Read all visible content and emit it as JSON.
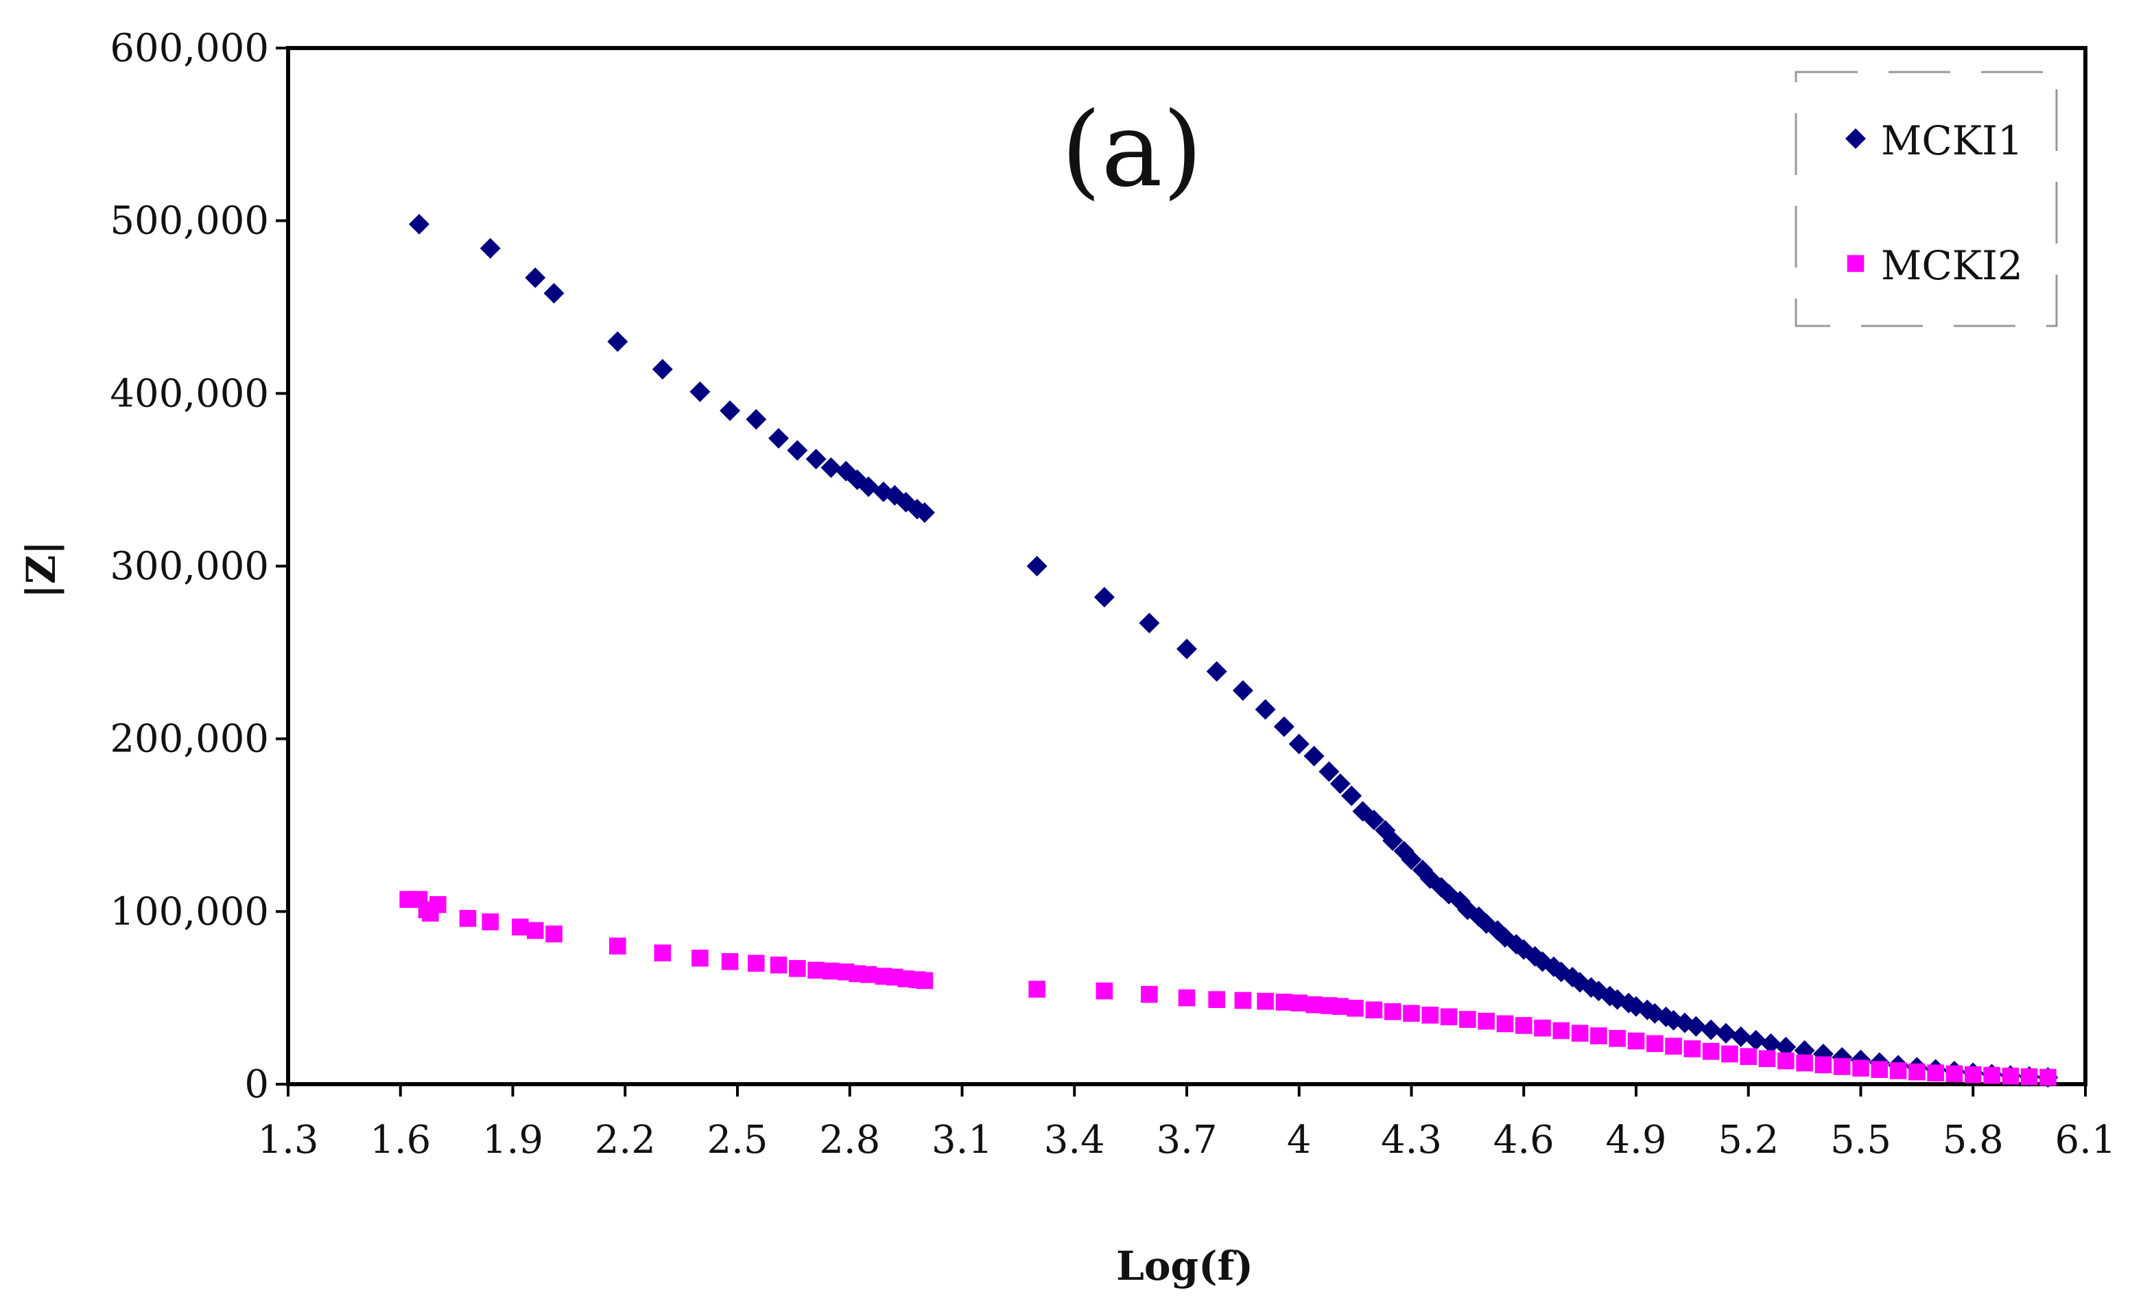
{
  "chart_data": {
    "type": "scatter",
    "title": "",
    "annotation": "(a)",
    "xlabel": "Log(f)",
    "ylabel": "|Z|",
    "xlim": [
      1.3,
      6.1
    ],
    "ylim": [
      0,
      600000
    ],
    "xticks": [
      "1.3",
      "1.6",
      "1.9",
      "2.2",
      "2.5",
      "2.8",
      "3.1",
      "3.4",
      "3.7",
      "4",
      "4.3",
      "4.6",
      "4.9",
      "5.2",
      "5.5",
      "5.8",
      "6.1"
    ],
    "yticks": [
      "0",
      "100,000",
      "200,000",
      "300,000",
      "400,000",
      "500,000",
      "600,000"
    ],
    "legend_position": "top-right",
    "grid": false,
    "series": [
      {
        "name": "MCKI1",
        "marker": "diamond",
        "color": "#000080",
        "points": [
          [
            1.65,
            498000
          ],
          [
            1.84,
            484000
          ],
          [
            1.96,
            467000
          ],
          [
            2.01,
            458000
          ],
          [
            2.18,
            430000
          ],
          [
            2.3,
            414000
          ],
          [
            2.4,
            401000
          ],
          [
            2.48,
            390000
          ],
          [
            2.55,
            385000
          ],
          [
            2.61,
            374000
          ],
          [
            2.66,
            367000
          ],
          [
            2.71,
            362000
          ],
          [
            2.75,
            357000
          ],
          [
            2.79,
            355000
          ],
          [
            2.82,
            350000
          ],
          [
            2.85,
            346000
          ],
          [
            2.89,
            343000
          ],
          [
            2.92,
            341000
          ],
          [
            2.95,
            337000
          ],
          [
            2.98,
            333000
          ],
          [
            3.0,
            331000
          ],
          [
            3.3,
            300000
          ],
          [
            3.48,
            282000
          ],
          [
            3.6,
            267000
          ],
          [
            3.7,
            252000
          ],
          [
            3.78,
            239000
          ],
          [
            3.85,
            228000
          ],
          [
            3.91,
            217000
          ],
          [
            3.96,
            207000
          ],
          [
            4.0,
            197000
          ],
          [
            4.04,
            190000
          ],
          [
            4.08,
            181000
          ],
          [
            4.11,
            174000
          ],
          [
            4.14,
            167000
          ],
          [
            4.17,
            158000
          ],
          [
            4.2,
            153000
          ],
          [
            4.23,
            147000
          ],
          [
            4.25,
            141000
          ],
          [
            4.28,
            135000
          ],
          [
            4.3,
            130000
          ],
          [
            4.33,
            124000
          ],
          [
            4.35,
            119000
          ],
          [
            4.38,
            114000
          ],
          [
            4.4,
            110000
          ],
          [
            4.43,
            106000
          ],
          [
            4.45,
            101000
          ],
          [
            4.48,
            97000
          ],
          [
            4.5,
            93000
          ],
          [
            4.53,
            89000
          ],
          [
            4.55,
            85000
          ],
          [
            4.58,
            81000
          ],
          [
            4.6,
            78000
          ],
          [
            4.63,
            74000
          ],
          [
            4.65,
            71000
          ],
          [
            4.68,
            68000
          ],
          [
            4.7,
            65000
          ],
          [
            4.73,
            62000
          ],
          [
            4.75,
            59000
          ],
          [
            4.78,
            56000
          ],
          [
            4.8,
            54000
          ],
          [
            4.83,
            51000
          ],
          [
            4.85,
            49000
          ],
          [
            4.88,
            47000
          ],
          [
            4.9,
            45000
          ],
          [
            4.93,
            43000
          ],
          [
            4.95,
            41000
          ],
          [
            4.98,
            39000
          ],
          [
            5.0,
            37000
          ],
          [
            5.03,
            35500
          ],
          [
            5.06,
            33500
          ],
          [
            5.1,
            31500
          ],
          [
            5.14,
            29500
          ],
          [
            5.18,
            27500
          ],
          [
            5.22,
            25500
          ],
          [
            5.26,
            23500
          ],
          [
            5.3,
            21500
          ],
          [
            5.35,
            19500
          ],
          [
            5.4,
            17500
          ],
          [
            5.45,
            15500
          ],
          [
            5.5,
            14000
          ],
          [
            5.55,
            12500
          ],
          [
            5.6,
            11000
          ],
          [
            5.65,
            9800
          ],
          [
            5.7,
            8600
          ],
          [
            5.75,
            7600
          ],
          [
            5.8,
            6600
          ],
          [
            5.85,
            5800
          ],
          [
            5.9,
            5000
          ],
          [
            5.95,
            4400
          ],
          [
            6.0,
            3900
          ]
        ]
      },
      {
        "name": "MCKI2",
        "marker": "square",
        "color": "#FF00FF",
        "points": [
          [
            1.62,
            107000
          ],
          [
            1.65,
            107000
          ],
          [
            1.67,
            101000
          ],
          [
            1.68,
            99000
          ],
          [
            1.7,
            104000
          ],
          [
            1.78,
            96000
          ],
          [
            1.84,
            94000
          ],
          [
            1.92,
            91000
          ],
          [
            1.96,
            89000
          ],
          [
            2.01,
            87000
          ],
          [
            2.18,
            80000
          ],
          [
            2.3,
            76000
          ],
          [
            2.4,
            73000
          ],
          [
            2.48,
            71000
          ],
          [
            2.55,
            70000
          ],
          [
            2.61,
            69000
          ],
          [
            2.66,
            67000
          ],
          [
            2.71,
            66000
          ],
          [
            2.75,
            65500
          ],
          [
            2.79,
            65000
          ],
          [
            2.82,
            64000
          ],
          [
            2.85,
            63500
          ],
          [
            2.89,
            62500
          ],
          [
            2.92,
            62000
          ],
          [
            2.95,
            61000
          ],
          [
            2.98,
            60500
          ],
          [
            3.0,
            60000
          ],
          [
            3.3,
            55000
          ],
          [
            3.48,
            54000
          ],
          [
            3.6,
            52000
          ],
          [
            3.7,
            50000
          ],
          [
            3.78,
            49000
          ],
          [
            3.85,
            48500
          ],
          [
            3.91,
            48000
          ],
          [
            3.96,
            47500
          ],
          [
            4.0,
            47000
          ],
          [
            4.04,
            46000
          ],
          [
            4.08,
            45500
          ],
          [
            4.11,
            45000
          ],
          [
            4.15,
            44000
          ],
          [
            4.2,
            43000
          ],
          [
            4.25,
            42000
          ],
          [
            4.3,
            41000
          ],
          [
            4.35,
            40000
          ],
          [
            4.4,
            39000
          ],
          [
            4.45,
            37500
          ],
          [
            4.5,
            36500
          ],
          [
            4.55,
            35000
          ],
          [
            4.6,
            34000
          ],
          [
            4.65,
            32500
          ],
          [
            4.7,
            31000
          ],
          [
            4.75,
            29500
          ],
          [
            4.8,
            28000
          ],
          [
            4.85,
            26500
          ],
          [
            4.9,
            25000
          ],
          [
            4.95,
            23500
          ],
          [
            5.0,
            22000
          ],
          [
            5.05,
            20500
          ],
          [
            5.1,
            19000
          ],
          [
            5.15,
            17500
          ],
          [
            5.2,
            16000
          ],
          [
            5.25,
            14800
          ],
          [
            5.3,
            13500
          ],
          [
            5.35,
            12300
          ],
          [
            5.4,
            11200
          ],
          [
            5.45,
            10200
          ],
          [
            5.5,
            9300
          ],
          [
            5.55,
            8500
          ],
          [
            5.6,
            7800
          ],
          [
            5.65,
            7100
          ],
          [
            5.7,
            6500
          ],
          [
            5.75,
            6000
          ],
          [
            5.8,
            5500
          ],
          [
            5.85,
            5100
          ],
          [
            5.9,
            4700
          ],
          [
            5.95,
            4300
          ],
          [
            6.0,
            4000
          ]
        ]
      }
    ]
  }
}
